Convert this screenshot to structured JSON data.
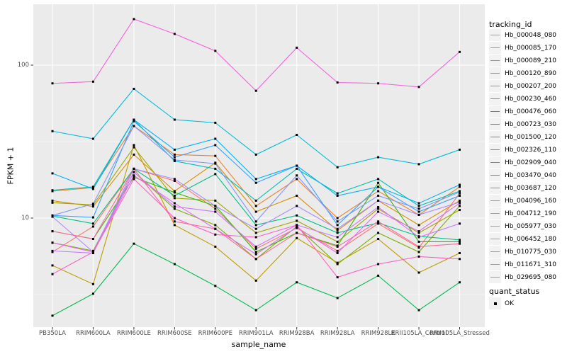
{
  "legend": {
    "tracking_title": "tracking_id",
    "quant_title": "quant_status",
    "quant_item": "OK"
  },
  "chart_data": {
    "type": "line",
    "title": "",
    "xlabel": "sample_name",
    "ylabel": "FPKM + 1",
    "legend_position": "right",
    "y_scale": "log10",
    "y_ticks": [
      10,
      100
    ],
    "y_tick_labels": [
      "10",
      "100"
    ],
    "y_minor_ticks": [
      3.162,
      31.62
    ],
    "ylim": [
      1.94,
      250
    ],
    "grid": "on",
    "panel_bg": "#EBEBEB",
    "grid_color": "#FFFFFF",
    "point_shape": "filled-square",
    "point_color": "#000000",
    "x_categories": [
      "PB350LA",
      "RRIM600LA",
      "RRIM600LE",
      "RRIM600SE",
      "RRIM600PE",
      "RRIM901LA",
      "RRIM928BA",
      "RRIM928LA",
      "RRIM928LE",
      "RRII105LA_Control",
      "RRII105LA_Stressed"
    ],
    "series": [
      {
        "name": "Hb_000048_080",
        "color": "#F8766D",
        "values": [
          6.0,
          8.8,
          21,
          17.5,
          11.5,
          6.3,
          8.6,
          6.1,
          9.2,
          6.4,
          14.5
        ]
      },
      {
        "name": "Hb_000085_170",
        "color": "#EA8331",
        "values": [
          15.0,
          15.8,
          40,
          26,
          25.5,
          12,
          18,
          10,
          15,
          10.5,
          16
        ]
      },
      {
        "name": "Hb_000089_210",
        "color": "#D89000",
        "values": [
          13.0,
          11.9,
          26,
          15,
          23,
          11,
          14,
          8.3,
          13,
          9.0,
          13
        ]
      },
      {
        "name": "Hb_000120_890",
        "color": "#C09B00",
        "values": [
          4.9,
          3.7,
          30,
          9.0,
          6.5,
          3.9,
          7.4,
          5.1,
          7.3,
          4.4,
          5.9
        ]
      },
      {
        "name": "Hb_000207_200",
        "color": "#A3A500",
        "values": [
          12.6,
          12.2,
          29,
          13.5,
          13,
          8.0,
          9.6,
          7.0,
          11.5,
          8.0,
          11.3
        ]
      },
      {
        "name": "Hb_000230_460",
        "color": "#7CAE00",
        "values": [
          6.9,
          6.1,
          20,
          11.5,
          9.0,
          5.4,
          8.8,
          5.0,
          8.0,
          6.0,
          12
        ]
      },
      {
        "name": "Hb_000476_060",
        "color": "#39B600",
        "values": [
          8.2,
          7.3,
          18.5,
          14.7,
          12,
          6.0,
          8.0,
          6.6,
          17,
          7.0,
          7.0
        ]
      },
      {
        "name": "Hb_000723_030",
        "color": "#00BB4E",
        "values": [
          2.3,
          3.2,
          6.8,
          5.0,
          3.6,
          2.5,
          3.8,
          3.0,
          4.2,
          2.5,
          3.8
        ]
      },
      {
        "name": "Hb_001500_120",
        "color": "#00C087",
        "values": [
          10.3,
          9.2,
          21,
          14,
          19.4,
          9.0,
          10.4,
          8.0,
          9.3,
          7.6,
          7.2
        ]
      },
      {
        "name": "Hb_002326_110",
        "color": "#00C0B3",
        "values": [
          15.2,
          16,
          44,
          23.6,
          21,
          13,
          21,
          14.5,
          18,
          12,
          15
        ]
      },
      {
        "name": "Hb_002909_040",
        "color": "#00BCD8",
        "values": [
          37,
          33,
          70,
          44,
          42,
          26,
          35,
          21.5,
          25,
          22.5,
          28
        ]
      },
      {
        "name": "Hb_003470_040",
        "color": "#00B0F6",
        "values": [
          19.6,
          15.5,
          44,
          28,
          33,
          18,
          22,
          14,
          16,
          12.5,
          16.5
        ]
      },
      {
        "name": "Hb_003687_120",
        "color": "#35A2FF",
        "values": [
          10.4,
          10.1,
          43,
          25,
          30,
          17,
          22,
          9.0,
          16,
          11,
          14
        ]
      },
      {
        "name": "Hb_004096_160",
        "color": "#7F96FF",
        "values": [
          10.4,
          12.4,
          40,
          24,
          22.7,
          9.5,
          19,
          9.5,
          14,
          11.5,
          14.8
        ]
      },
      {
        "name": "Hb_004712_190",
        "color": "#AC88FF",
        "values": [
          10.2,
          6.0,
          21,
          18,
          12,
          8.5,
          12,
          8.5,
          13,
          10.5,
          12.7
        ]
      },
      {
        "name": "Hb_005977_030",
        "color": "#CD79FF",
        "values": [
          6.1,
          5.9,
          20,
          11.9,
          11,
          6.5,
          9.0,
          7.5,
          11.8,
          7.5,
          9.2
        ]
      },
      {
        "name": "Hb_006452_180",
        "color": "#E36EF6",
        "values": [
          6.9,
          6.0,
          19,
          12.5,
          8.5,
          5.8,
          8.7,
          5.9,
          11,
          8.2,
          12.5
        ]
      },
      {
        "name": "Hb_010775_030",
        "color": "#F563DE",
        "values": [
          76,
          78,
          200,
          160,
          124,
          68,
          130,
          77,
          76,
          72,
          122
        ]
      },
      {
        "name": "Hb_011671_310",
        "color": "#FF61C7",
        "values": [
          4.3,
          6.0,
          18,
          10,
          7.8,
          7.5,
          9.0,
          4.1,
          5.0,
          5.6,
          5.4
        ]
      },
      {
        "name": "Hb_029695_080",
        "color": "#FF68A1",
        "values": [
          8.2,
          7.3,
          21,
          9.5,
          8.5,
          5.4,
          8.0,
          6.5,
          9.5,
          6.5,
          6.8
        ]
      }
    ]
  }
}
